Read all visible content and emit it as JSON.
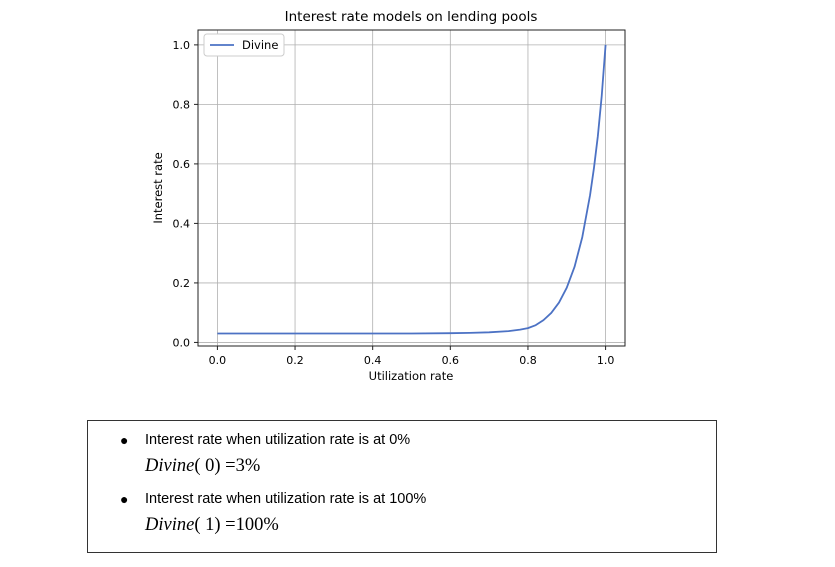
{
  "chart_data": {
    "type": "line",
    "title": "Interest rate models on lending pools",
    "xlabel": "Utilization rate",
    "ylabel": "Interest rate",
    "xlim": [
      -0.05,
      1.05
    ],
    "ylim": [
      -0.012,
      1.05
    ],
    "xticks": [
      "0.0",
      "0.2",
      "0.4",
      "0.6",
      "0.8",
      "1.0"
    ],
    "yticks": [
      "0.0",
      "0.2",
      "0.4",
      "0.6",
      "0.8",
      "1.0"
    ],
    "grid": true,
    "legend_position": "upper-left",
    "series": [
      {
        "name": "Divine",
        "color": "#4c72c4",
        "x": [
          0.0,
          0.1,
          0.2,
          0.3,
          0.4,
          0.5,
          0.6,
          0.65,
          0.7,
          0.75,
          0.78,
          0.8,
          0.82,
          0.84,
          0.86,
          0.88,
          0.9,
          0.92,
          0.94,
          0.96,
          0.97,
          0.98,
          0.99,
          1.0
        ],
        "y": [
          0.03,
          0.03,
          0.03,
          0.03,
          0.03,
          0.03,
          0.031,
          0.032,
          0.034,
          0.038,
          0.043,
          0.048,
          0.058,
          0.075,
          0.099,
          0.134,
          0.184,
          0.254,
          0.354,
          0.495,
          0.586,
          0.693,
          0.828,
          1.0
        ]
      }
    ]
  },
  "notes": {
    "items": [
      {
        "text": "Interest rate when utilization rate is at 0%",
        "formula_fn": "Divine",
        "formula_arg": "( 0)",
        "formula_rhs": "=3%"
      },
      {
        "text": "Interest rate when utilization rate is at 100%",
        "formula_fn": "Divine",
        "formula_arg": "( 1)",
        "formula_rhs": "=100%"
      }
    ],
    "bullet_symbol": "●"
  }
}
